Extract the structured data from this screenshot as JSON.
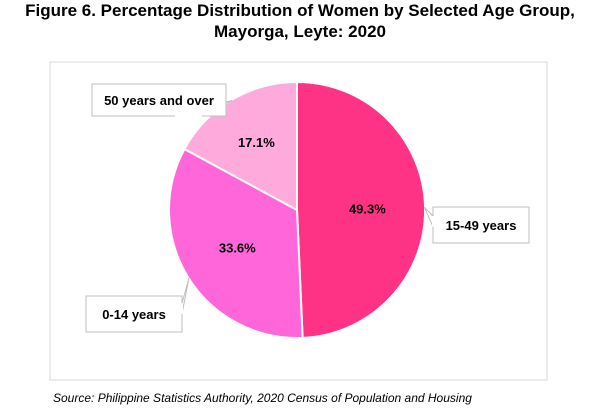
{
  "title": {
    "line1": "Figure 6. Percentage Distribution of Women by Selected Age Group,",
    "line2": "Mayorga, Leyte: 2020"
  },
  "source": "Source: Philippine Statistics Authority, 2020 Census of Population and Housing",
  "chart_data": {
    "type": "pie",
    "title": "Figure 6. Percentage Distribution of Women by Selected Age Group, Mayorga, Leyte: 2020",
    "categories": [
      "15-49 years",
      "0-14 years",
      "50 years and over"
    ],
    "values": [
      49.3,
      33.6,
      17.1
    ],
    "value_labels": [
      "49.3%",
      "33.6%",
      "17.1%"
    ],
    "colors": [
      "#ff3386",
      "#ff66d9",
      "#ffaadd"
    ],
    "start_angle_deg": 0,
    "direction": "clockwise",
    "legend": "none",
    "labels": "callouts"
  }
}
